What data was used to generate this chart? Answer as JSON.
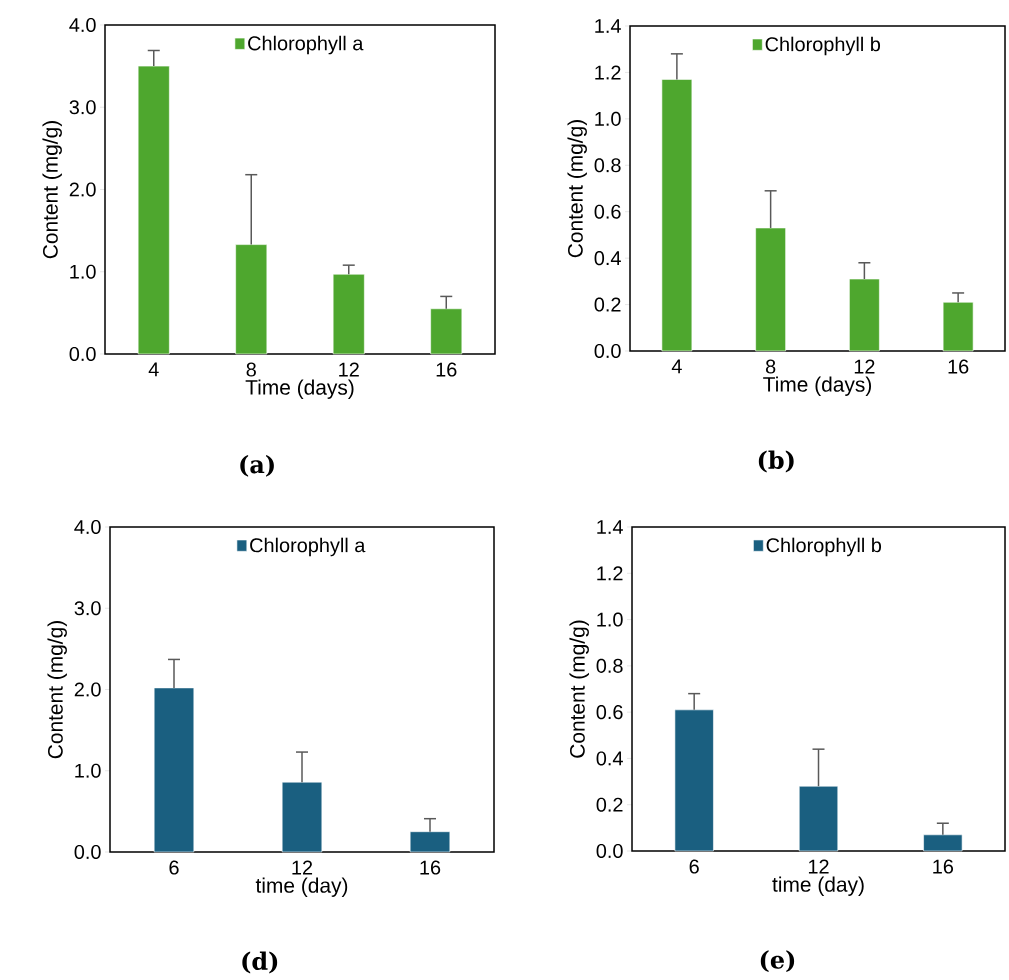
{
  "chart_data": [
    {
      "type": "bar",
      "categories": [
        "4",
        "8",
        "12",
        "16"
      ],
      "xlabel": "Time (days)",
      "ylabel": "Content (mg/g)",
      "ylim": [
        0,
        4
      ],
      "yticks": [
        {
          "value": 0,
          "label": "0.0"
        },
        {
          "value": 1,
          "label": "1.0"
        },
        {
          "value": 2,
          "label": "2.0"
        },
        {
          "value": 3,
          "label": "3.0"
        },
        {
          "value": 4,
          "label": "4.0"
        }
      ],
      "legend": "top",
      "annotations": [
        "(a)"
      ],
      "series": [
        {
          "name": "Chlorophyll a",
          "color": "#4ea72e",
          "values": [
            3.5,
            1.33,
            0.97,
            0.55
          ],
          "errors": [
            [
              3.5,
              3.69
            ],
            [
              1.33,
              2.18
            ],
            [
              0.97,
              1.08
            ],
            [
              0.55,
              0.7
            ]
          ]
        }
      ]
    },
    {
      "type": "bar",
      "categories": [
        "4",
        "8",
        "12",
        "16"
      ],
      "xlabel": "Time (days)",
      "ylabel": "Content (mg/g)",
      "ylim": [
        0,
        1.4
      ],
      "yticks": [
        {
          "value": 0,
          "label": "0.0"
        },
        {
          "value": 0.2,
          "label": "0.2"
        },
        {
          "value": 0.4,
          "label": "0.4"
        },
        {
          "value": 0.6,
          "label": "0.6"
        },
        {
          "value": 0.8,
          "label": "0.8"
        },
        {
          "value": 1,
          "label": "1.0"
        },
        {
          "value": 1.2,
          "label": "1.2"
        },
        {
          "value": 1.4,
          "label": "1.4"
        }
      ],
      "legend": "top",
      "annotations": [
        "(b)"
      ],
      "series": [
        {
          "name": "Chlorophyll b",
          "color": "#4ea72e",
          "values": [
            1.17,
            0.53,
            0.31,
            0.21
          ],
          "errors": [
            [
              1.17,
              1.28
            ],
            [
              0.53,
              0.69
            ],
            [
              0.31,
              0.38
            ],
            [
              0.21,
              0.25
            ]
          ]
        }
      ]
    },
    {
      "type": "bar",
      "categories": [
        "6",
        "12",
        "16"
      ],
      "xlabel": "time (day)",
      "ylabel": "Content (mg/g)",
      "ylim": [
        0,
        4
      ],
      "yticks": [
        {
          "value": 0,
          "label": "0.0"
        },
        {
          "value": 1,
          "label": "1.0"
        },
        {
          "value": 2,
          "label": "2.0"
        },
        {
          "value": 3,
          "label": "3.0"
        },
        {
          "value": 4,
          "label": "4.0"
        }
      ],
      "legend": "top",
      "annotations": [
        "(d)"
      ],
      "series": [
        {
          "name": "Chlorophyll a",
          "color": "#1a5f80",
          "values": [
            2.02,
            0.86,
            0.25
          ],
          "errors": [
            [
              2.02,
              2.37
            ],
            [
              0.86,
              1.23
            ],
            [
              0.25,
              0.41
            ]
          ]
        }
      ]
    },
    {
      "type": "bar",
      "categories": [
        "6",
        "12",
        "16"
      ],
      "xlabel": "time (day)",
      "ylabel": "Content (mg/g)",
      "ylim": [
        0,
        1.4
      ],
      "yticks": [
        {
          "value": 0,
          "label": "0.0"
        },
        {
          "value": 0.2,
          "label": "0.2"
        },
        {
          "value": 0.4,
          "label": "0.4"
        },
        {
          "value": 0.6,
          "label": "0.6"
        },
        {
          "value": 0.8,
          "label": "0.8"
        },
        {
          "value": 1,
          "label": "1.0"
        },
        {
          "value": 1.2,
          "label": "1.2"
        },
        {
          "value": 1.4,
          "label": "1.4"
        }
      ],
      "legend": "top",
      "annotations": [
        "(e)"
      ],
      "series": [
        {
          "name": "Chlorophyll b",
          "color": "#1a5f80",
          "values": [
            0.61,
            0.28,
            0.07
          ],
          "errors": [
            [
              0.61,
              0.68
            ],
            [
              0.28,
              0.44
            ],
            [
              0.07,
              0.12
            ]
          ]
        }
      ]
    }
  ]
}
